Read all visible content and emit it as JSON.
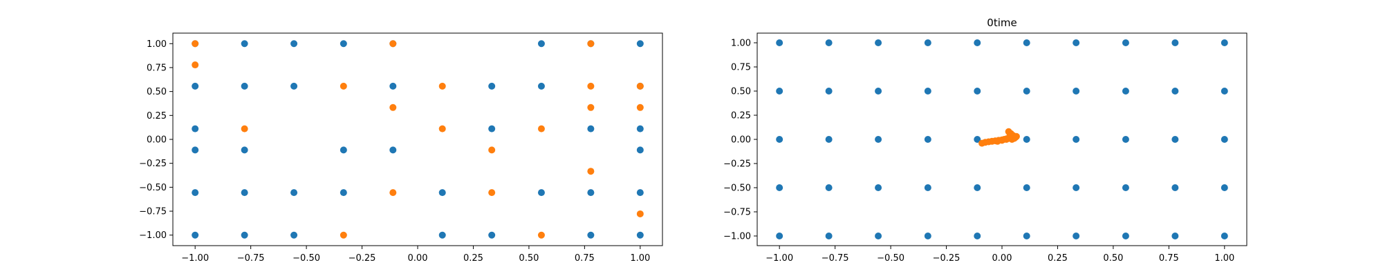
{
  "figure": {
    "colors": {
      "blue": "#1f77b4",
      "orange": "#ff7f0e",
      "axis": "#000000",
      "background": "#ffffff"
    }
  },
  "chart_data": [
    {
      "type": "scatter",
      "title": "",
      "xlabel": "",
      "ylabel": "",
      "xlim": [
        -1.1,
        1.1
      ],
      "ylim": [
        -1.11,
        1.11
      ],
      "xticks": [
        -1.0,
        -0.75,
        -0.5,
        -0.25,
        0.0,
        0.25,
        0.5,
        0.75,
        1.0
      ],
      "xtick_labels": [
        "−1.00",
        "−0.75",
        "−0.50",
        "−0.25",
        "0.00",
        "0.25",
        "0.50",
        "0.75",
        "1.00"
      ],
      "yticks": [
        1.0,
        0.75,
        0.5,
        0.25,
        0.0,
        -0.25,
        -0.5,
        -0.75,
        -1.0
      ],
      "ytick_labels": [
        "1.00",
        "0.75",
        "0.50",
        "0.25",
        "0.00",
        "−0.25",
        "−0.50",
        "−0.75",
        "−1.00"
      ],
      "grid": false,
      "series": [
        {
          "color": "#1f77b4",
          "x": [
            -1,
            -0.778,
            -0.556,
            -0.333,
            -0.111,
            0.556,
            0.778,
            1.0,
            -1,
            -0.778,
            -0.556,
            -0.111,
            0.333,
            0.556,
            1.0,
            -1,
            0.333,
            0.778,
            1.0,
            -1,
            -0.778,
            -0.333,
            -0.111,
            1.0,
            -1,
            -0.778,
            -0.556,
            -0.333,
            0.111,
            0.556,
            0.778,
            1.0,
            -1,
            -0.778,
            -0.556,
            0.111,
            0.333,
            0.778,
            1.0
          ],
          "y": [
            1,
            1,
            1,
            1,
            1,
            1,
            1,
            1,
            0.556,
            0.556,
            0.556,
            0.556,
            0.556,
            0.556,
            0.556,
            0.111,
            0.111,
            0.111,
            0.111,
            -0.111,
            -0.111,
            -0.111,
            -0.111,
            -0.111,
            -0.556,
            -0.556,
            -0.556,
            -0.556,
            -0.556,
            -0.556,
            -0.556,
            -0.556,
            -1,
            -1,
            -1,
            -1,
            -1,
            -1,
            -1
          ]
        },
        {
          "color": "#ff7f0e",
          "x": [
            -1,
            -0.111,
            0.778,
            -1,
            -0.333,
            0.111,
            0.778,
            1.0,
            -0.111,
            0.778,
            1.0,
            -0.778,
            0.111,
            0.556,
            0.333,
            0.778,
            -0.111,
            0.333,
            1.0,
            -0.333,
            0.556
          ],
          "y": [
            1,
            1,
            1,
            0.778,
            0.556,
            0.556,
            0.556,
            0.556,
            0.333,
            0.333,
            0.333,
            0.111,
            0.111,
            0.111,
            -0.111,
            -0.333,
            -0.556,
            -0.556,
            -0.778,
            -1,
            -1
          ]
        }
      ]
    },
    {
      "type": "scatter",
      "title": "0time",
      "xlabel": "",
      "ylabel": "",
      "xlim": [
        -1.1,
        1.1
      ],
      "ylim": [
        -1.1,
        1.1
      ],
      "xticks": [
        -1.0,
        -0.75,
        -0.5,
        -0.25,
        0.0,
        0.25,
        0.5,
        0.75,
        1.0
      ],
      "xtick_labels": [
        "−1.00",
        "−0.75",
        "−0.50",
        "−0.25",
        "0.00",
        "0.25",
        "0.50",
        "0.75",
        "1.00"
      ],
      "yticks": [
        1.0,
        0.75,
        0.5,
        0.25,
        0.0,
        -0.25,
        -0.5,
        -0.75,
        -1.0
      ],
      "ytick_labels": [
        "1.00",
        "0.75",
        "0.50",
        "0.25",
        "0.00",
        "−0.25",
        "−0.50",
        "−0.75",
        "−1.00"
      ],
      "grid": false,
      "series": [
        {
          "color": "#1f77b4",
          "grid_x": [
            -1,
            -0.778,
            -0.556,
            -0.333,
            -0.111,
            0.111,
            0.333,
            0.556,
            0.778,
            1.0
          ],
          "grid_y": [
            1.0,
            0.5,
            0.0,
            -0.5,
            -1.0
          ]
        },
        {
          "color": "#ff7f0e",
          "x": [
            -0.09,
            -0.075,
            -0.06,
            -0.045,
            -0.03,
            -0.015,
            0.0,
            0.01,
            0.02,
            0.03,
            0.04,
            0.05,
            0.06,
            0.05,
            0.04,
            0.03,
            0.045,
            0.055,
            0.065,
            -0.02,
            0.0,
            0.02,
            0.035
          ],
          "y": [
            -0.04,
            -0.03,
            -0.025,
            -0.02,
            -0.015,
            -0.01,
            -0.005,
            0.0,
            0.005,
            0.01,
            0.015,
            0.02,
            0.02,
            0.04,
            0.06,
            0.08,
            0.0,
            0.01,
            0.03,
            -0.02,
            -0.01,
            0.0,
            0.03
          ]
        }
      ]
    }
  ]
}
